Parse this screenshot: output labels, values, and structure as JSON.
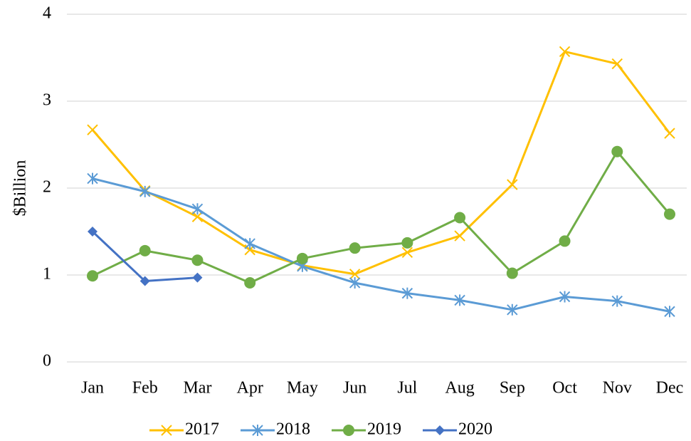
{
  "chart_data": {
    "type": "line",
    "y_label": "$Billion",
    "categories": [
      "Jan",
      "Feb",
      "Mar",
      "Apr",
      "May",
      "Jun",
      "Jul",
      "Aug",
      "Sep",
      "Oct",
      "Nov",
      "Dec"
    ],
    "series": [
      {
        "name": "2017",
        "color": "#ffc000",
        "marker": "x",
        "values": [
          2.67,
          1.97,
          1.67,
          1.29,
          1.11,
          1.01,
          1.26,
          1.45,
          2.04,
          3.57,
          3.43,
          2.63
        ]
      },
      {
        "name": "2018",
        "color": "#5b9bd5",
        "marker": "star",
        "values": [
          2.11,
          1.96,
          1.76,
          1.36,
          1.1,
          0.91,
          0.79,
          0.71,
          0.6,
          0.75,
          0.7,
          0.58
        ]
      },
      {
        "name": "2019",
        "color": "#70ad47",
        "marker": "circle",
        "values": [
          0.99,
          1.28,
          1.17,
          0.91,
          1.19,
          1.31,
          1.37,
          1.66,
          1.02,
          1.39,
          2.42,
          1.7
        ]
      },
      {
        "name": "2020",
        "color": "#4472c4",
        "marker": "diamond",
        "values": [
          1.5,
          0.93,
          0.97,
          null,
          null,
          null,
          null,
          null,
          null,
          null,
          null,
          null
        ]
      }
    ],
    "ylim": [
      0,
      4
    ],
    "yticks": [
      0,
      1,
      2,
      3,
      4
    ],
    "grid": true,
    "legend": "bottom"
  }
}
